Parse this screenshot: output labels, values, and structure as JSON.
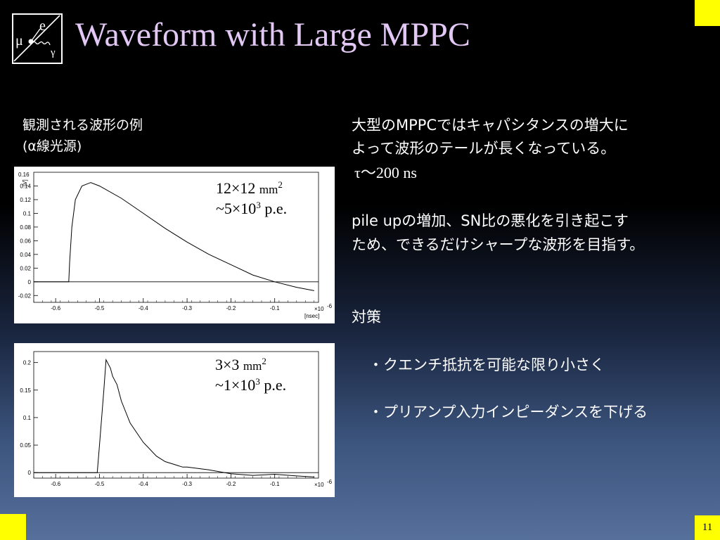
{
  "title": "Waveform with Large MPPC",
  "page_number": "11",
  "logo": {
    "letters": [
      "e",
      "μ",
      "γ"
    ]
  },
  "left": {
    "caption_line1": "観測される波形の例",
    "caption_line2": "(α線光源)"
  },
  "plots": [
    {
      "label_size": "12×12",
      "label_unit": "mm",
      "label_unit_exp": "2",
      "label_pe_prefix": "~5×10",
      "label_pe_exp": "3",
      "label_pe_suffix": " p.e.",
      "y_scale": "0.16",
      "y_unit": "[V]",
      "x_exp": "×10",
      "x_exp_sup": "-6",
      "x_unit": "[nsec]"
    },
    {
      "label_size": "3×3",
      "label_unit": "mm",
      "label_unit_exp": "2",
      "label_pe_prefix": "~1×10",
      "label_pe_exp": "3",
      "label_pe_suffix": " p.e.",
      "x_exp": "×10",
      "x_exp_sup": "-6"
    }
  ],
  "right": {
    "line1": "大型のMPPCではキャパシタンスの増大に",
    "line2": "よって波形のテールが長くなっている。",
    "line3": "τ～200 ns",
    "line4": "pile upの増加、SN比の悪化を引き起こす",
    "line5": "ため、できるだけシャープな波形を目指す。",
    "countermeasure_title": "対策",
    "item1": "・クエンチ抵抗を可能な限り小さく",
    "item2": "・プリアンプ入力インピーダンスを下げる"
  },
  "chart_data": [
    {
      "type": "line",
      "xlabel": "[nsec]",
      "ylabel": "[V]",
      "x_multiplier": "×10^-6",
      "xlim": [
        -0.65,
        -0.0
      ],
      "ylim": [
        -0.03,
        0.16
      ],
      "x_ticks": [
        -0.6,
        -0.5,
        -0.4,
        -0.3,
        -0.2,
        -0.1
      ],
      "y_ticks": [
        -0.02,
        0,
        0.02,
        0.04,
        0.06,
        0.08,
        0.1,
        0.12,
        0.14
      ],
      "series": [
        {
          "x": [
            -0.65,
            -0.57,
            -0.568,
            -0.563,
            -0.555,
            -0.54,
            -0.52,
            -0.5,
            -0.45,
            -0.4,
            -0.35,
            -0.3,
            -0.25,
            -0.2,
            -0.15,
            -0.1,
            -0.05,
            -0.01
          ],
          "y": [
            0,
            0,
            0.03,
            0.08,
            0.12,
            0.14,
            0.145,
            0.14,
            0.122,
            0.1,
            0.078,
            0.058,
            0.04,
            0.025,
            0.01,
            0.0,
            -0.008,
            -0.013
          ]
        }
      ]
    },
    {
      "type": "line",
      "x_multiplier": "×10^-6",
      "xlim": [
        -0.65,
        -0.0
      ],
      "ylim": [
        -0.01,
        0.22
      ],
      "x_ticks": [
        -0.6,
        -0.5,
        -0.4,
        -0.3,
        -0.2,
        -0.1
      ],
      "y_ticks": [
        0,
        0.05,
        0.1,
        0.15,
        0.2
      ],
      "series": [
        {
          "x": [
            -0.65,
            -0.505,
            -0.5,
            -0.49,
            -0.485,
            -0.475,
            -0.47,
            -0.46,
            -0.45,
            -0.43,
            -0.4,
            -0.37,
            -0.35,
            -0.33,
            -0.31,
            -0.3,
            -0.25,
            -0.2,
            -0.15,
            -0.1,
            -0.05,
            -0.01
          ],
          "y": [
            0,
            0,
            0.05,
            0.15,
            0.205,
            0.19,
            0.175,
            0.16,
            0.13,
            0.09,
            0.055,
            0.03,
            0.02,
            0.015,
            0.01,
            0.01,
            0.005,
            -0.002,
            -0.005,
            -0.003,
            -0.006,
            -0.008
          ]
        }
      ]
    }
  ]
}
